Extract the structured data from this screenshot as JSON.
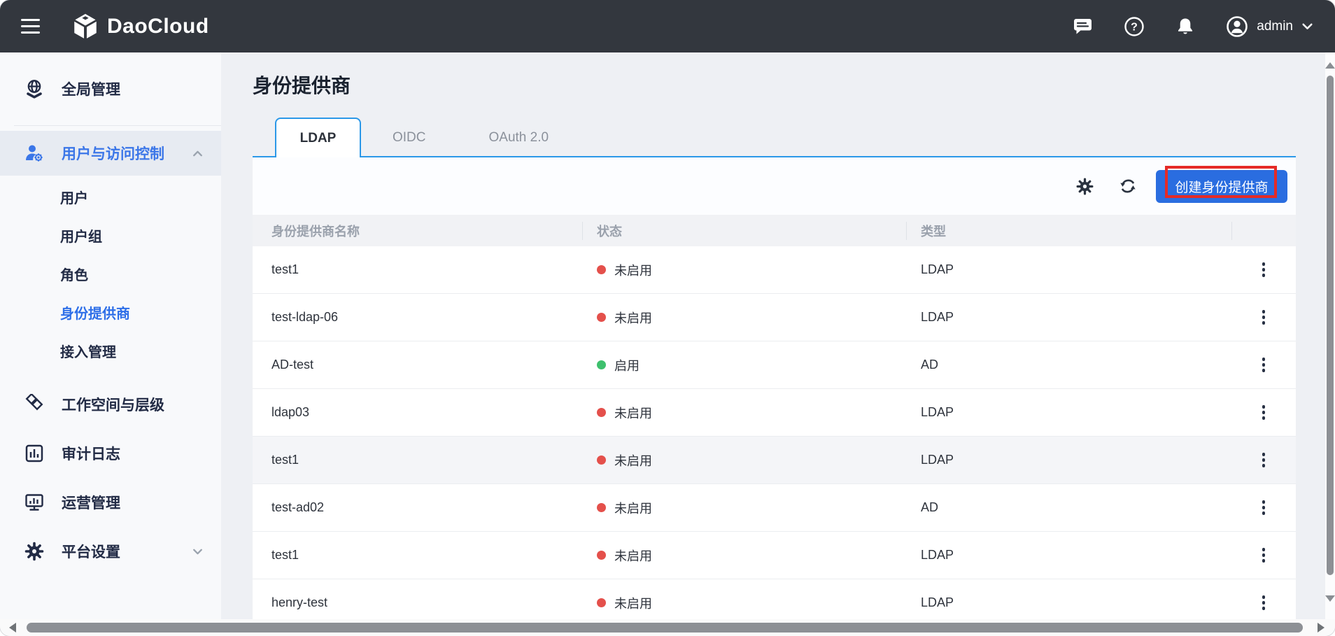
{
  "topbar": {
    "brand": "DaoCloud",
    "user": "admin"
  },
  "sidebar": {
    "items": [
      {
        "label": "全局管理",
        "icon": "globe-icon"
      },
      {
        "label": "用户与访问控制",
        "icon": "user-gear-icon",
        "active": true,
        "expanded": true,
        "children": [
          {
            "label": "用户"
          },
          {
            "label": "用户组"
          },
          {
            "label": "角色"
          },
          {
            "label": "身份提供商",
            "active": true
          },
          {
            "label": "接入管理"
          }
        ]
      },
      {
        "label": "工作空间与层级",
        "icon": "workspace-icon"
      },
      {
        "label": "审计日志",
        "icon": "audit-log-icon"
      },
      {
        "label": "运营管理",
        "icon": "operations-icon"
      },
      {
        "label": "平台设置",
        "icon": "gear-icon",
        "collapsed": true
      }
    ]
  },
  "main": {
    "title": "身份提供商",
    "tabs": [
      {
        "label": "LDAP",
        "active": true
      },
      {
        "label": "OIDC",
        "active": false
      },
      {
        "label": "OAuth 2.0",
        "active": false
      }
    ],
    "create_button": "创建身份提供商",
    "table": {
      "columns": [
        "身份提供商名称",
        "状态",
        "类型",
        ""
      ],
      "rows": [
        {
          "name": "test1",
          "status": "未启用",
          "enabled": false,
          "type": "LDAP"
        },
        {
          "name": "test-ldap-06",
          "status": "未启用",
          "enabled": false,
          "type": "LDAP"
        },
        {
          "name": "AD-test",
          "status": "启用",
          "enabled": true,
          "type": "AD"
        },
        {
          "name": "ldap03",
          "status": "未启用",
          "enabled": false,
          "type": "LDAP"
        },
        {
          "name": "test1",
          "status": "未启用",
          "enabled": false,
          "type": "LDAP",
          "highlighted": true
        },
        {
          "name": "test-ad02",
          "status": "未启用",
          "enabled": false,
          "type": "AD"
        },
        {
          "name": "test1",
          "status": "未启用",
          "enabled": false,
          "type": "LDAP"
        },
        {
          "name": "henry-test",
          "status": "未启用",
          "enabled": false,
          "type": "LDAP"
        }
      ]
    }
  },
  "colors": {
    "topbar": "#33373e",
    "sidebar-bg": "#f8f9fb",
    "active-bg": "#e7ebf2",
    "navy": "#222b45",
    "blue-accent": "#3b76e8",
    "tab-blue": "#2b98e8",
    "button-blue": "#2a6de0",
    "main-bg": "#eef0f4",
    "card-bg": "#fcfdff",
    "header-bg": "#f1f2f5",
    "header-text": "#9aa1ac",
    "row-border": "#ebedf0",
    "alt-row": "#f4f5f8",
    "red-status": "#e4504b",
    "green-status": "#3ec06d",
    "annotation-red": "#e52a26",
    "scroll-thumb": "#8d9095"
  }
}
